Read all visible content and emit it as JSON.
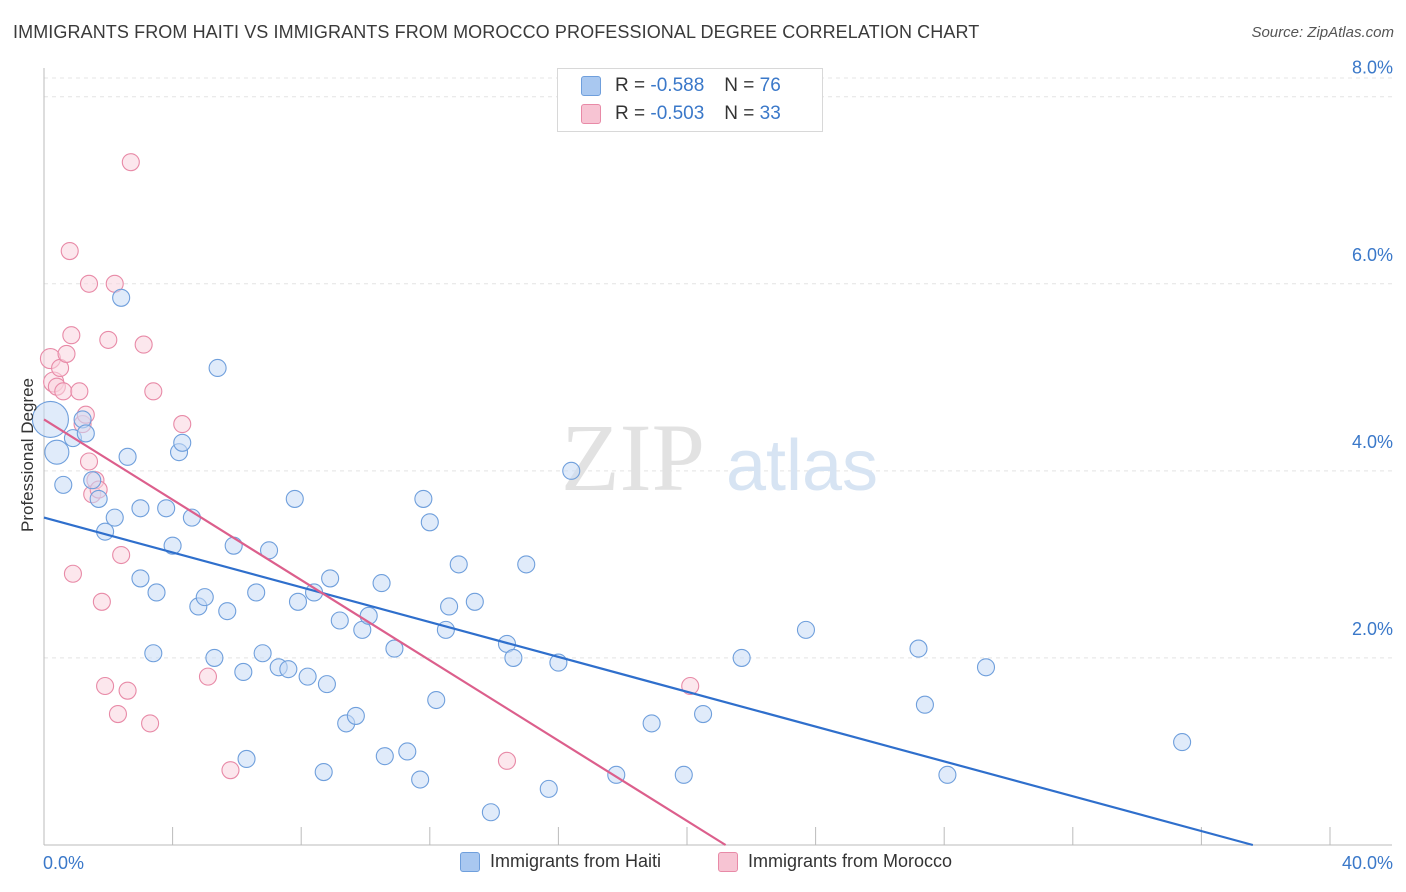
{
  "title": "IMMIGRANTS FROM HAITI VS IMMIGRANTS FROM MOROCCO PROFESSIONAL DEGREE CORRELATION CHART",
  "source": "Source: ZipAtlas.com",
  "watermark": {
    "zip": "ZIP",
    "atlas": "atlas"
  },
  "stats": [
    {
      "r_label": "R =",
      "r_value": "-0.588",
      "n_label": "N =",
      "n_value": "76",
      "color": "#a9c8f0",
      "border": "#6f9fdc"
    },
    {
      "r_label": "R =",
      "r_value": "-0.503",
      "n_label": "N =",
      "n_value": "33",
      "color": "#f7c4d3",
      "border": "#e88aa7"
    }
  ],
  "legend": {
    "haiti": "Immigrants from Haiti",
    "morocco": "Immigrants from Morocco"
  },
  "chart_data": {
    "type": "scatter",
    "title": "IMMIGRANTS FROM HAITI VS IMMIGRANTS FROM MOROCCO PROFESSIONAL DEGREE CORRELATION CHART",
    "xlabel": "",
    "ylabel": "Professional Degree",
    "xlim": [
      0,
      40
    ],
    "ylim": [
      0,
      8.2
    ],
    "x_tick_labels": [
      "0.0%",
      "40.0%"
    ],
    "y_ticks": [
      2,
      4,
      6,
      8
    ],
    "y_tick_labels": [
      "2.0%",
      "4.0%",
      "6.0%",
      "8.0%"
    ],
    "grid": true,
    "legend_position": "bottom-center",
    "series": [
      {
        "name": "Immigrants from Haiti",
        "color": "#6f9fdc",
        "fill": "#c7dbf5",
        "trend": {
          "x": [
            0,
            37.6
          ],
          "y": [
            3.5,
            0.0
          ],
          "color": "#2f6fcc"
        },
        "points": [
          {
            "x": 0.2,
            "y": 4.55,
            "s": 3
          },
          {
            "x": 0.4,
            "y": 4.2,
            "s": 2
          },
          {
            "x": 0.6,
            "y": 3.85,
            "s": 1
          },
          {
            "x": 0.9,
            "y": 4.35,
            "s": 1
          },
          {
            "x": 1.2,
            "y": 4.55,
            "s": 1
          },
          {
            "x": 1.3,
            "y": 4.4,
            "s": 1
          },
          {
            "x": 1.5,
            "y": 3.9,
            "s": 1
          },
          {
            "x": 1.7,
            "y": 3.7,
            "s": 1
          },
          {
            "x": 2.4,
            "y": 5.85,
            "s": 1
          },
          {
            "x": 1.9,
            "y": 3.35,
            "s": 1
          },
          {
            "x": 2.2,
            "y": 3.5,
            "s": 1
          },
          {
            "x": 2.6,
            "y": 4.15,
            "s": 1
          },
          {
            "x": 3.0,
            "y": 2.85,
            "s": 1
          },
          {
            "x": 3.0,
            "y": 3.6,
            "s": 1
          },
          {
            "x": 3.4,
            "y": 2.05,
            "s": 1
          },
          {
            "x": 3.5,
            "y": 2.7,
            "s": 1
          },
          {
            "x": 3.8,
            "y": 3.6,
            "s": 1
          },
          {
            "x": 4.0,
            "y": 3.2,
            "s": 1
          },
          {
            "x": 4.2,
            "y": 4.2,
            "s": 1
          },
          {
            "x": 4.3,
            "y": 4.3,
            "s": 1
          },
          {
            "x": 4.6,
            "y": 3.5,
            "s": 1
          },
          {
            "x": 4.8,
            "y": 2.55,
            "s": 1
          },
          {
            "x": 5.0,
            "y": 2.65,
            "s": 1
          },
          {
            "x": 5.3,
            "y": 2.0,
            "s": 1
          },
          {
            "x": 5.4,
            "y": 5.1,
            "s": 1
          },
          {
            "x": 5.7,
            "y": 2.5,
            "s": 1
          },
          {
            "x": 5.9,
            "y": 3.2,
            "s": 1
          },
          {
            "x": 6.2,
            "y": 1.85,
            "s": 1
          },
          {
            "x": 6.3,
            "y": 0.92,
            "s": 1
          },
          {
            "x": 6.6,
            "y": 2.7,
            "s": 1
          },
          {
            "x": 6.8,
            "y": 2.05,
            "s": 1
          },
          {
            "x": 7.0,
            "y": 3.15,
            "s": 1
          },
          {
            "x": 7.3,
            "y": 1.9,
            "s": 1
          },
          {
            "x": 7.6,
            "y": 1.88,
            "s": 1
          },
          {
            "x": 7.8,
            "y": 3.7,
            "s": 1
          },
          {
            "x": 7.9,
            "y": 2.6,
            "s": 1
          },
          {
            "x": 8.2,
            "y": 1.8,
            "s": 1
          },
          {
            "x": 8.4,
            "y": 2.7,
            "s": 1
          },
          {
            "x": 8.7,
            "y": 0.78,
            "s": 1
          },
          {
            "x": 8.8,
            "y": 1.72,
            "s": 1
          },
          {
            "x": 8.9,
            "y": 2.85,
            "s": 1
          },
          {
            "x": 9.2,
            "y": 2.4,
            "s": 1
          },
          {
            "x": 9.4,
            "y": 1.3,
            "s": 1
          },
          {
            "x": 9.7,
            "y": 1.38,
            "s": 1
          },
          {
            "x": 9.9,
            "y": 2.3,
            "s": 1
          },
          {
            "x": 10.1,
            "y": 2.45,
            "s": 1
          },
          {
            "x": 10.5,
            "y": 2.8,
            "s": 1
          },
          {
            "x": 10.6,
            "y": 0.95,
            "s": 1
          },
          {
            "x": 10.9,
            "y": 2.1,
            "s": 1
          },
          {
            "x": 11.3,
            "y": 1.0,
            "s": 1
          },
          {
            "x": 11.7,
            "y": 0.7,
            "s": 1
          },
          {
            "x": 11.8,
            "y": 3.7,
            "s": 1
          },
          {
            "x": 12.0,
            "y": 3.45,
            "s": 1
          },
          {
            "x": 12.2,
            "y": 1.55,
            "s": 1
          },
          {
            "x": 12.5,
            "y": 2.3,
            "s": 1
          },
          {
            "x": 12.6,
            "y": 2.55,
            "s": 1
          },
          {
            "x": 12.9,
            "y": 3.0,
            "s": 1
          },
          {
            "x": 13.4,
            "y": 2.6,
            "s": 1
          },
          {
            "x": 13.9,
            "y": 0.35,
            "s": 1
          },
          {
            "x": 14.4,
            "y": 2.15,
            "s": 1
          },
          {
            "x": 14.6,
            "y": 2.0,
            "s": 1
          },
          {
            "x": 15.0,
            "y": 3.0,
            "s": 1
          },
          {
            "x": 15.7,
            "y": 0.6,
            "s": 1
          },
          {
            "x": 16.0,
            "y": 1.95,
            "s": 1
          },
          {
            "x": 16.4,
            "y": 4.0,
            "s": 1
          },
          {
            "x": 17.8,
            "y": 0.75,
            "s": 1
          },
          {
            "x": 18.9,
            "y": 1.3,
            "s": 1
          },
          {
            "x": 19.9,
            "y": 0.75,
            "s": 1
          },
          {
            "x": 20.5,
            "y": 1.4,
            "s": 1
          },
          {
            "x": 21.7,
            "y": 2.0,
            "s": 1
          },
          {
            "x": 23.7,
            "y": 2.3,
            "s": 1
          },
          {
            "x": 27.2,
            "y": 2.1,
            "s": 1
          },
          {
            "x": 27.4,
            "y": 1.5,
            "s": 1
          },
          {
            "x": 28.1,
            "y": 0.75,
            "s": 1
          },
          {
            "x": 29.3,
            "y": 1.9,
            "s": 1
          },
          {
            "x": 35.4,
            "y": 1.1,
            "s": 1
          }
        ]
      },
      {
        "name": "Immigrants from Morocco",
        "color": "#e88aa7",
        "fill": "#f9d4df",
        "trend": {
          "x": [
            0,
            21.2
          ],
          "y": [
            4.55,
            0.0
          ],
          "color": "#dc5f8c"
        },
        "points": [
          {
            "x": 0.2,
            "y": 5.2,
            "s": 1.5
          },
          {
            "x": 0.3,
            "y": 4.95,
            "s": 1.5
          },
          {
            "x": 0.4,
            "y": 4.9,
            "s": 1
          },
          {
            "x": 0.5,
            "y": 5.1,
            "s": 1
          },
          {
            "x": 0.6,
            "y": 4.85,
            "s": 1
          },
          {
            "x": 0.7,
            "y": 5.25,
            "s": 1
          },
          {
            "x": 0.8,
            "y": 6.35,
            "s": 1
          },
          {
            "x": 0.85,
            "y": 5.45,
            "s": 1
          },
          {
            "x": 0.9,
            "y": 2.9,
            "s": 1
          },
          {
            "x": 1.1,
            "y": 4.85,
            "s": 1
          },
          {
            "x": 1.2,
            "y": 4.5,
            "s": 1
          },
          {
            "x": 1.3,
            "y": 4.6,
            "s": 1
          },
          {
            "x": 1.4,
            "y": 4.1,
            "s": 1
          },
          {
            "x": 1.4,
            "y": 6.0,
            "s": 1
          },
          {
            "x": 1.5,
            "y": 3.75,
            "s": 1
          },
          {
            "x": 1.6,
            "y": 3.9,
            "s": 1
          },
          {
            "x": 1.7,
            "y": 3.8,
            "s": 1
          },
          {
            "x": 1.8,
            "y": 2.6,
            "s": 1
          },
          {
            "x": 1.9,
            "y": 1.7,
            "s": 1
          },
          {
            "x": 2.0,
            "y": 5.4,
            "s": 1
          },
          {
            "x": 2.2,
            "y": 6.0,
            "s": 1
          },
          {
            "x": 2.3,
            "y": 1.4,
            "s": 1
          },
          {
            "x": 2.4,
            "y": 3.1,
            "s": 1
          },
          {
            "x": 2.6,
            "y": 1.65,
            "s": 1
          },
          {
            "x": 2.7,
            "y": 7.3,
            "s": 1
          },
          {
            "x": 3.1,
            "y": 5.35,
            "s": 1
          },
          {
            "x": 3.3,
            "y": 1.3,
            "s": 1
          },
          {
            "x": 3.4,
            "y": 4.85,
            "s": 1
          },
          {
            "x": 4.3,
            "y": 4.5,
            "s": 1
          },
          {
            "x": 5.1,
            "y": 1.8,
            "s": 1
          },
          {
            "x": 5.8,
            "y": 0.8,
            "s": 1
          },
          {
            "x": 14.4,
            "y": 0.9,
            "s": 1
          },
          {
            "x": 20.1,
            "y": 1.7,
            "s": 1
          }
        ]
      }
    ]
  }
}
